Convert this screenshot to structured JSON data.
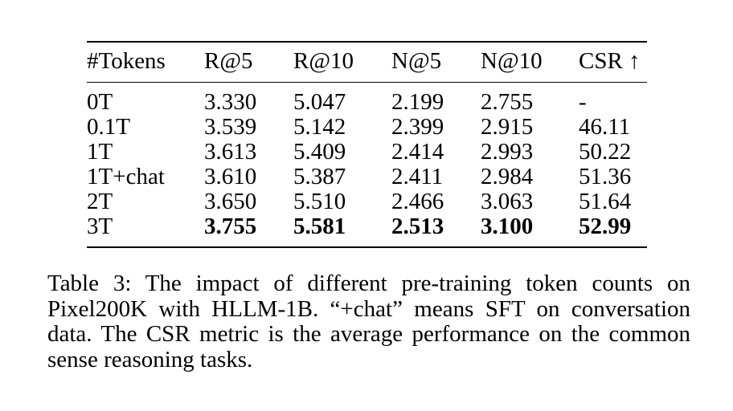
{
  "table": {
    "headers": [
      "#Tokens",
      "R@5",
      "R@10",
      "N@5",
      "N@10",
      "CSR ↑"
    ],
    "rows": [
      [
        "0T",
        "3.330",
        "5.047",
        "2.199",
        "2.755",
        "-"
      ],
      [
        "0.1T",
        "3.539",
        "5.142",
        "2.399",
        "2.915",
        "46.11"
      ],
      [
        "1T",
        "3.613",
        "5.409",
        "2.414",
        "2.993",
        "50.22"
      ],
      [
        "1T+chat",
        "3.610",
        "5.387",
        "2.411",
        "2.984",
        "51.36"
      ],
      [
        "2T",
        "3.650",
        "5.510",
        "2.466",
        "3.063",
        "51.64"
      ],
      [
        "3T",
        "3.755",
        "5.581",
        "2.513",
        "3.100",
        "52.99"
      ]
    ],
    "bold_row": "3T"
  },
  "caption": {
    "label": "Table 3:",
    "text": "The impact of different pre-training token counts on Pixel200K with HLLM-1B. “+chat” means SFT on conversation data. The CSR metric is the average performance on the common sense reasoning tasks."
  }
}
